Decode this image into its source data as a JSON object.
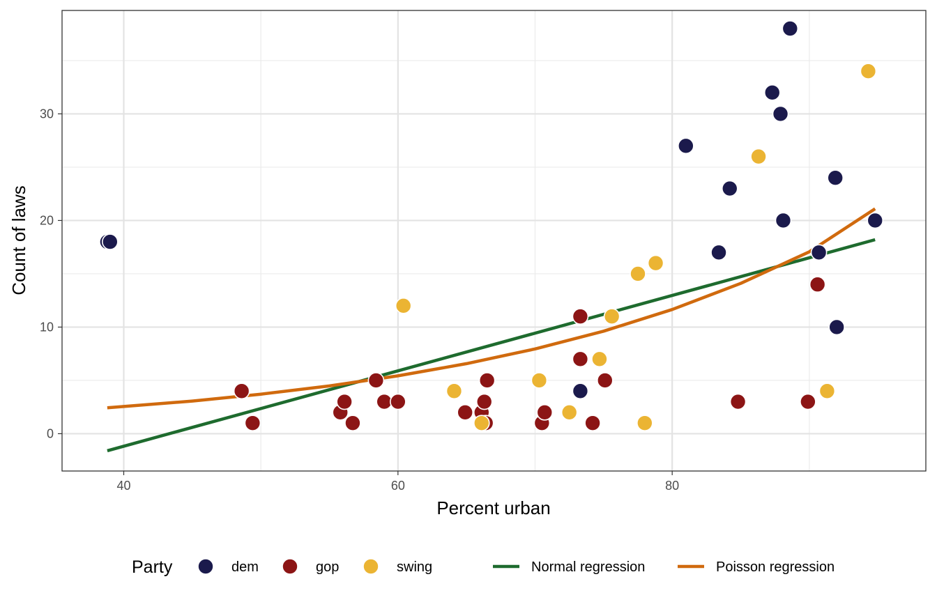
{
  "chart_data": {
    "type": "scatter",
    "xlabel": "Percent urban",
    "ylabel": "Count of laws",
    "xlim": [
      35.5,
      98.5
    ],
    "ylim": [
      -3.5,
      39.7
    ],
    "x_ticks": [
      40,
      60,
      80
    ],
    "x_tick_labels": [
      "40",
      "60",
      "80"
    ],
    "y_ticks": [
      0,
      10,
      20,
      30
    ],
    "y_tick_labels": [
      "0",
      "10",
      "20",
      "30"
    ],
    "grid": true,
    "legend_position": "bottom",
    "legend_title": "Party",
    "groups": [
      {
        "name": "dem",
        "color": "#1b1a4c",
        "points": [
          [
            38.8,
            18
          ],
          [
            39.0,
            18
          ],
          [
            73.3,
            4
          ],
          [
            81.0,
            27
          ],
          [
            83.4,
            17
          ],
          [
            84.2,
            23
          ],
          [
            87.3,
            32
          ],
          [
            87.9,
            30
          ],
          [
            88.1,
            20
          ],
          [
            88.6,
            38
          ],
          [
            90.7,
            17
          ],
          [
            91.9,
            24
          ],
          [
            92.0,
            10
          ],
          [
            94.8,
            20
          ]
        ]
      },
      {
        "name": "gop",
        "color": "#8c1515",
        "points": [
          [
            48.6,
            4
          ],
          [
            49.4,
            1
          ],
          [
            55.8,
            2
          ],
          [
            56.1,
            3
          ],
          [
            56.7,
            1
          ],
          [
            58.4,
            5
          ],
          [
            59.0,
            3
          ],
          [
            60.0,
            3
          ],
          [
            64.9,
            2
          ],
          [
            66.1,
            2
          ],
          [
            66.3,
            3
          ],
          [
            66.4,
            1
          ],
          [
            66.5,
            5
          ],
          [
            70.5,
            1
          ],
          [
            70.7,
            2
          ],
          [
            73.3,
            7
          ],
          [
            73.3,
            11
          ],
          [
            74.2,
            1
          ],
          [
            75.1,
            5
          ],
          [
            84.8,
            3
          ],
          [
            89.9,
            3
          ],
          [
            90.6,
            14
          ]
        ]
      },
      {
        "name": "swing",
        "color": "#ebb433",
        "points": [
          [
            60.4,
            12
          ],
          [
            64.1,
            4
          ],
          [
            66.1,
            1
          ],
          [
            70.3,
            5
          ],
          [
            72.5,
            2
          ],
          [
            74.7,
            7
          ],
          [
            75.6,
            11
          ],
          [
            77.5,
            15
          ],
          [
            78.0,
            1
          ],
          [
            78.8,
            16
          ],
          [
            86.3,
            26
          ],
          [
            91.3,
            4
          ],
          [
            94.3,
            34
          ]
        ]
      }
    ],
    "lines": [
      {
        "name": "Normal regression",
        "color": "#1e6b2e",
        "points": [
          [
            38.8,
            -1.6
          ],
          [
            94.8,
            18.2
          ]
        ]
      },
      {
        "name": "Poisson regression",
        "color": "#d06a0e",
        "points": [
          [
            38.8,
            2.43
          ],
          [
            45,
            3.06
          ],
          [
            50,
            3.71
          ],
          [
            55,
            4.48
          ],
          [
            60,
            5.43
          ],
          [
            65,
            6.57
          ],
          [
            70,
            7.95
          ],
          [
            75,
            9.62
          ],
          [
            80,
            11.65
          ],
          [
            85,
            14.1
          ],
          [
            90,
            17.06
          ],
          [
            94.8,
            21.1
          ]
        ]
      }
    ]
  }
}
